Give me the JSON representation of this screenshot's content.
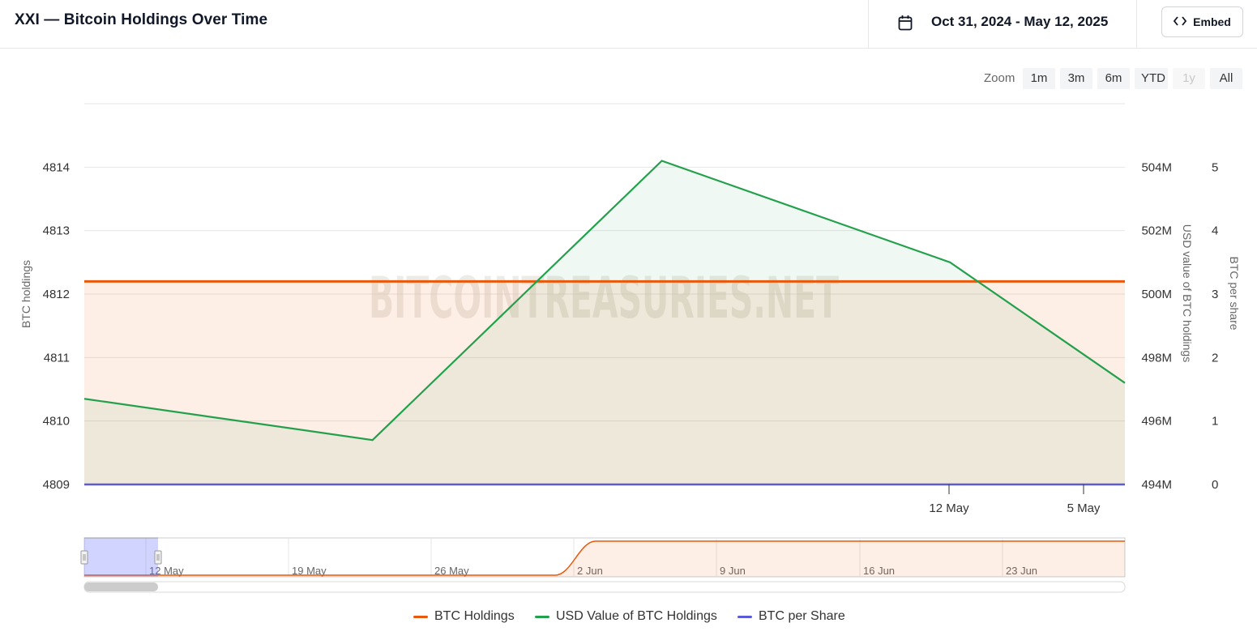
{
  "header": {
    "title": "XXI — Bitcoin Holdings Over Time",
    "date_range": "Oct 31, 2024 - May 12, 2025",
    "embed_label": "Embed"
  },
  "zoom": {
    "label": "Zoom",
    "buttons": [
      {
        "label": "1m",
        "enabled": true
      },
      {
        "label": "3m",
        "enabled": true
      },
      {
        "label": "6m",
        "enabled": true
      },
      {
        "label": "YTD",
        "enabled": true
      },
      {
        "label": "1y",
        "enabled": false
      },
      {
        "label": "All",
        "enabled": true
      }
    ]
  },
  "watermark": "BITCOINTREASURIES.NET",
  "colors": {
    "btc_holdings": "#e8590c",
    "usd_value": "#22a04b",
    "btc_per_share": "#5b5bd6"
  },
  "chart_data": {
    "type": "line",
    "y_axes": [
      {
        "label": "BTC holdings",
        "ticks": [
          "4809",
          "4810",
          "4811",
          "4812",
          "4813",
          "4814"
        ],
        "range": [
          4809,
          4815
        ]
      },
      {
        "label": "USD value of BTC holdings",
        "ticks": [
          "494M",
          "496M",
          "498M",
          "500M",
          "502M",
          "504M"
        ],
        "range": [
          494,
          506
        ]
      },
      {
        "label": "BTC per share",
        "ticks": [
          "0",
          "1",
          "2",
          "3",
          "4",
          "5"
        ],
        "range": [
          0,
          6
        ]
      }
    ],
    "x_ticks": [
      "12 May",
      "5 May"
    ],
    "series": [
      {
        "name": "BTC Holdings",
        "axis": 0,
        "x": [
          0,
          1
        ],
        "values": [
          4812.2,
          4812.2
        ]
      },
      {
        "name": "USD Value of BTC Holdings",
        "axis": 1,
        "x": [
          0,
          0.277,
          0.555,
          0.832,
          1
        ],
        "values": [
          496.7,
          495.4,
          504.2,
          501.0,
          497.2
        ]
      },
      {
        "name": "BTC per Share",
        "axis": 2,
        "x": [
          0,
          1
        ],
        "values": [
          0,
          0
        ]
      }
    ],
    "navigator": {
      "ticks": [
        "12 May",
        "19 May",
        "26 May",
        "2 Jun",
        "9 Jun",
        "16 Jun",
        "23 Jun"
      ]
    },
    "legend_position": "bottom"
  }
}
